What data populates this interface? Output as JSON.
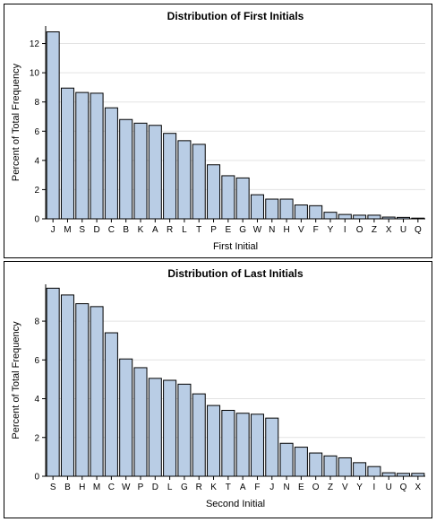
{
  "colors": {
    "bar_fill": "#b9cde5",
    "bar_stroke": "#000000",
    "grid": "#e3e3e3"
  },
  "chart_data": [
    {
      "type": "bar",
      "title": "Distribution of First Initials",
      "xlabel": "First Initial",
      "ylabel": "Percent of Total Frequency",
      "ylim": [
        0,
        13.2
      ],
      "yticks": [
        0,
        2,
        4,
        6,
        8,
        10,
        12
      ],
      "grid": true,
      "categories": [
        "J",
        "M",
        "S",
        "D",
        "C",
        "B",
        "K",
        "A",
        "R",
        "L",
        "T",
        "P",
        "E",
        "G",
        "W",
        "N",
        "H",
        "V",
        "F",
        "Y",
        "I",
        "O",
        "Z",
        "X",
        "U",
        "Q"
      ],
      "values": [
        12.8,
        8.95,
        8.65,
        8.6,
        7.6,
        6.8,
        6.55,
        6.4,
        5.85,
        5.35,
        5.1,
        3.7,
        2.95,
        2.8,
        1.65,
        1.35,
        1.35,
        0.95,
        0.9,
        0.45,
        0.3,
        0.25,
        0.25,
        0.12,
        0.1,
        0.05
      ]
    },
    {
      "type": "bar",
      "title": "Distribution of Last Initials",
      "xlabel": "Second Initial",
      "ylabel": "Percent of Total Frequency",
      "ylim": [
        0,
        9.9
      ],
      "yticks": [
        0,
        2,
        4,
        6,
        8
      ],
      "grid": true,
      "categories": [
        "S",
        "B",
        "H",
        "M",
        "C",
        "W",
        "P",
        "D",
        "L",
        "G",
        "R",
        "K",
        "T",
        "A",
        "F",
        "J",
        "N",
        "E",
        "O",
        "Z",
        "V",
        "Y",
        "I",
        "U",
        "Q",
        "X"
      ],
      "values": [
        9.7,
        9.35,
        8.9,
        8.75,
        7.4,
        6.05,
        5.6,
        5.05,
        4.95,
        4.75,
        4.25,
        3.65,
        3.4,
        3.25,
        3.2,
        3.0,
        1.7,
        1.5,
        1.2,
        1.05,
        0.95,
        0.7,
        0.5,
        0.18,
        0.15,
        0.15
      ]
    }
  ]
}
